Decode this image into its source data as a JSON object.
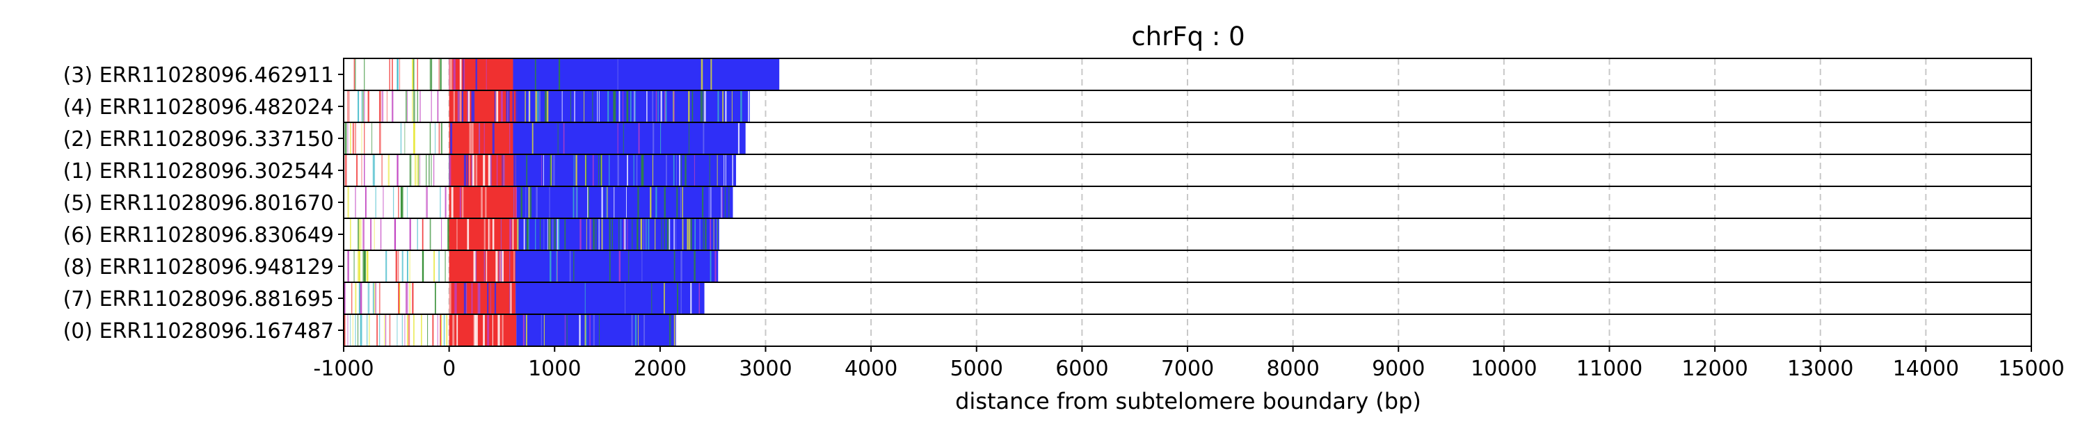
{
  "chart_data": {
    "type": "read-composition",
    "title": "chrFq : 0",
    "xlabel": "distance from subtelomere boundary (bp)",
    "xlim": [
      -1000,
      15000
    ],
    "xticks": [
      -1000,
      0,
      1000,
      2000,
      3000,
      4000,
      5000,
      6000,
      7000,
      8000,
      9000,
      10000,
      11000,
      12000,
      13000,
      14000,
      15000
    ],
    "grid": "x, dashed",
    "colors": {
      "blue": "#2f2ff7",
      "red": "#f03030",
      "green": "#2e8b2e",
      "yellow": "#e6e62a",
      "magenta": "#c040c0",
      "cyan": "#3cb8c8",
      "white": "#ffffff",
      "frame": "#000000",
      "grid": "#c8c8c8"
    },
    "reads": [
      {
        "label": "(3) ERR11028096.462911",
        "end": 3130,
        "density": 0.05,
        "seed": 3
      },
      {
        "label": "(4) ERR11028096.482024",
        "end": 2850,
        "density": 0.38,
        "seed": 4
      },
      {
        "label": "(2) ERR11028096.337150",
        "end": 2810,
        "density": 0.1,
        "seed": 2
      },
      {
        "label": "(1) ERR11028096.302544",
        "end": 2720,
        "density": 0.28,
        "seed": 1
      },
      {
        "label": "(5) ERR11028096.801670",
        "end": 2690,
        "density": 0.25,
        "seed": 5
      },
      {
        "label": "(6) ERR11028096.830649",
        "end": 2560,
        "density": 0.45,
        "seed": 6
      },
      {
        "label": "(8) ERR11028096.948129",
        "end": 2550,
        "density": 0.1,
        "seed": 8
      },
      {
        "label": "(7) ERR11028096.881695",
        "end": 2420,
        "density": 0.05,
        "seed": 7
      },
      {
        "label": "(0) ERR11028096.167487",
        "end": 2150,
        "density": 0.15,
        "seed": 9
      }
    ]
  }
}
